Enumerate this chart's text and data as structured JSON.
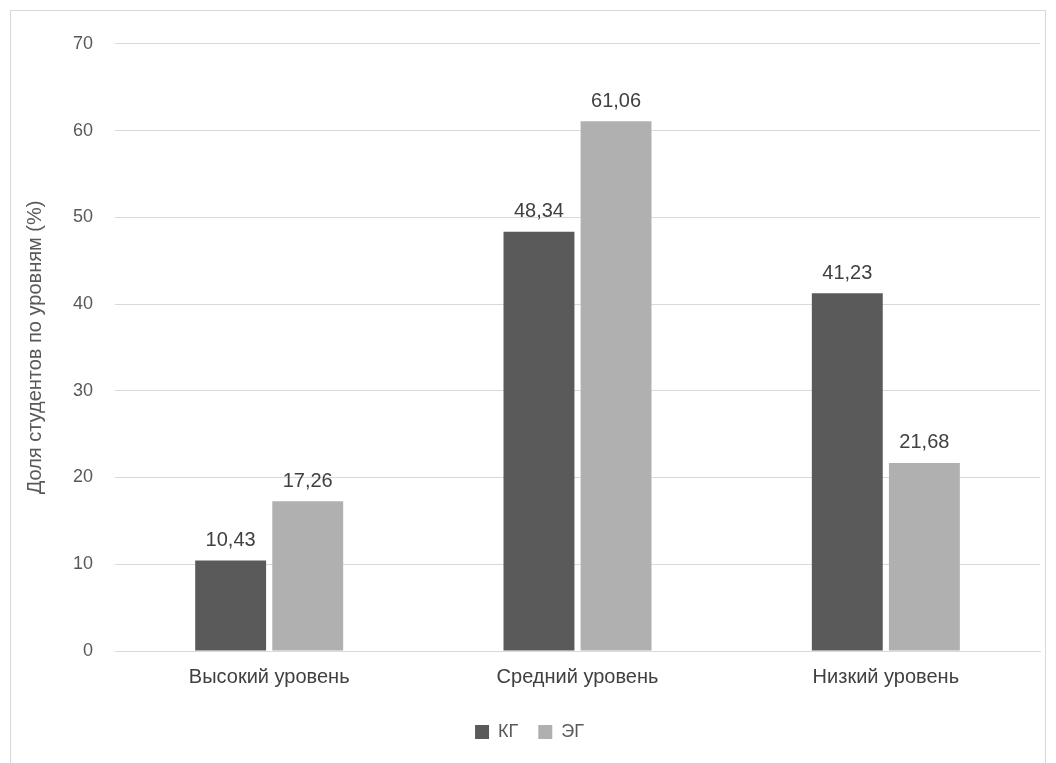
{
  "chart_data": {
    "type": "bar",
    "ylabel": "Доля студентов по уровням (%)",
    "categories": [
      "Высокий уровень",
      "Средний уровень",
      "Низкий уровень"
    ],
    "series": [
      {
        "name": "КГ",
        "color": "#5a5a5a",
        "values": [
          10.43,
          48.34,
          41.23
        ],
        "value_labels": [
          "10,43",
          "48,34",
          "41,23"
        ]
      },
      {
        "name": "ЭГ",
        "color": "#b0b0b0",
        "values": [
          17.26,
          61.06,
          21.68
        ],
        "value_labels": [
          "17,26",
          "61,06",
          "21,68"
        ]
      }
    ],
    "ylim": [
      0,
      70
    ],
    "yticks": [
      0,
      10,
      20,
      30,
      40,
      50,
      60,
      70
    ],
    "grid": "y",
    "legend": "bottom"
  }
}
